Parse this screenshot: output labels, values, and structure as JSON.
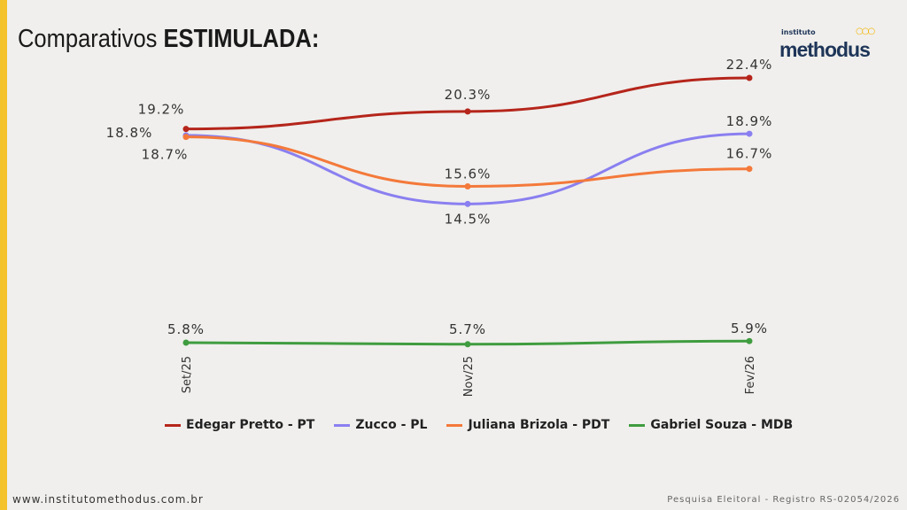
{
  "header": {
    "title_prefix": "Comparativos",
    "title_bold": "ESTIMULADA:",
    "logo_small": "instituto",
    "logo_big": "methodus"
  },
  "footer": {
    "website": "www.institutomethodus.com.br",
    "registry": "Pesquisa Eleitoral - Registro RS-02054/2026"
  },
  "chart_data": {
    "type": "line",
    "categories": [
      "Set/25",
      "Nov/25",
      "Fev/26"
    ],
    "series": [
      {
        "name": "Edegar Pretto - PT",
        "color": "#b5251b",
        "values": [
          19.2,
          20.3,
          22.4
        ],
        "labels": [
          "19.2%",
          "20.3%",
          "22.4%"
        ]
      },
      {
        "name": "Zucco - PL",
        "color": "#8a7ff0",
        "values": [
          18.8,
          14.5,
          18.9
        ],
        "labels": [
          "18.8%",
          "14.5%",
          "18.9%"
        ]
      },
      {
        "name": "Juliana Brizola - PDT",
        "color": "#f4793a",
        "values": [
          18.7,
          15.6,
          16.7
        ],
        "labels": [
          "18.7%",
          "15.6%",
          "16.7%"
        ]
      },
      {
        "name": "Gabriel Souza - MDB",
        "color": "#3f9c3f",
        "values": [
          5.8,
          5.7,
          5.9
        ],
        "labels": [
          "5.8%",
          "5.7%",
          "5.9%"
        ]
      }
    ],
    "legend_position": "bottom",
    "grid": false
  }
}
